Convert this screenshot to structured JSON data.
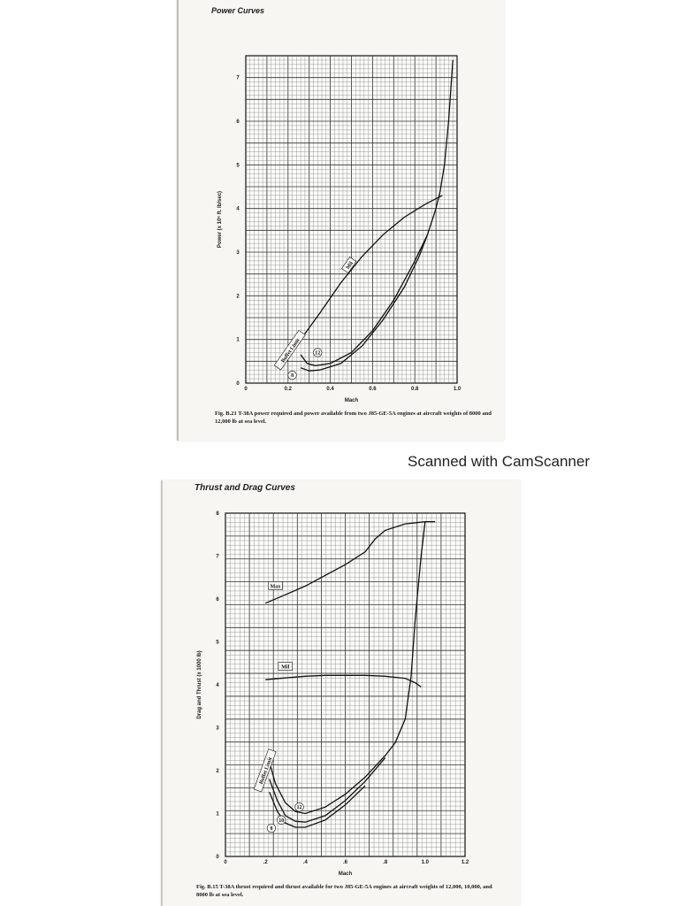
{
  "scanner_banner": "Scanned with CamScanner",
  "chart_data": [
    {
      "type": "line",
      "section_title": "Power Curves",
      "xlabel": "Mach",
      "ylabel": "Power (x 10⁶ ft. lb/sec)",
      "xlim": [
        0,
        1.0
      ],
      "ylim": [
        0,
        7.5
      ],
      "x_ticks": [
        "0",
        "0.2",
        "0.4",
        "0.6",
        "0.8",
        "1.0"
      ],
      "y_ticks": [
        "0",
        "1",
        "2",
        "3",
        "4",
        "5",
        "6",
        "7"
      ],
      "grid": true,
      "series": [
        {
          "name": "Mil",
          "x": [
            0.26,
            0.35,
            0.45,
            0.55,
            0.65,
            0.75,
            0.85,
            0.93
          ],
          "y": [
            1.0,
            1.6,
            2.3,
            2.9,
            3.4,
            3.8,
            4.1,
            4.3
          ]
        },
        {
          "name": "12",
          "x": [
            0.26,
            0.29,
            0.33,
            0.4,
            0.5,
            0.6,
            0.7,
            0.8,
            0.86,
            0.9,
            0.92,
            0.94,
            0.96,
            0.98
          ],
          "y": [
            0.65,
            0.45,
            0.4,
            0.45,
            0.7,
            1.2,
            1.9,
            2.8,
            3.4,
            4.0,
            4.4,
            5.0,
            6.0,
            7.4
          ]
        },
        {
          "name": "8",
          "x": [
            0.26,
            0.3,
            0.35,
            0.45,
            0.55,
            0.65,
            0.75,
            0.82,
            0.86
          ],
          "y": [
            0.35,
            0.28,
            0.3,
            0.45,
            0.85,
            1.45,
            2.2,
            2.9,
            3.4
          ]
        }
      ],
      "annotations": [
        "Buffet Limit",
        "Mil",
        "12",
        "8"
      ],
      "caption": "Fig. B.21   T-38A power required and power available from two J85-GE-5A engines at aircraft weights of 8000 and 12,000 lb at sea level."
    },
    {
      "type": "line",
      "section_title": "Thrust and Drag Curves",
      "xlabel": "Mach",
      "ylabel": "Drag and Thrust (x 1000 lb)",
      "xlim": [
        0,
        1.2
      ],
      "ylim": [
        0,
        8
      ],
      "x_ticks": [
        "0",
        ".2",
        ".4",
        ".6",
        ".8",
        "1.0",
        "1.2"
      ],
      "y_ticks": [
        "0",
        "1",
        "2",
        "3",
        "4",
        "5",
        "6",
        "7",
        "8"
      ],
      "grid": true,
      "series": [
        {
          "name": "Max",
          "x": [
            0.2,
            0.3,
            0.4,
            0.5,
            0.6,
            0.7,
            0.75,
            0.8,
            0.9,
            1.0,
            1.05
          ],
          "y": [
            5.9,
            6.1,
            6.3,
            6.55,
            6.8,
            7.1,
            7.4,
            7.6,
            7.75,
            7.8,
            7.8
          ]
        },
        {
          "name": "Mil",
          "x": [
            0.2,
            0.3,
            0.4,
            0.5,
            0.6,
            0.7,
            0.8,
            0.9,
            0.95,
            0.98
          ],
          "y": [
            4.12,
            4.16,
            4.2,
            4.22,
            4.22,
            4.22,
            4.2,
            4.15,
            4.05,
            3.95
          ]
        },
        {
          "name": "12",
          "x": [
            0.22,
            0.25,
            0.3,
            0.35,
            0.4,
            0.5,
            0.6,
            0.7,
            0.8,
            0.85,
            0.9,
            0.93,
            0.95,
            0.98,
            1.0
          ],
          "y": [
            2.2,
            1.7,
            1.25,
            1.05,
            1.0,
            1.15,
            1.45,
            1.85,
            2.35,
            2.65,
            3.2,
            4.2,
            5.5,
            7.0,
            7.8
          ]
        },
        {
          "name": "10",
          "x": [
            0.22,
            0.26,
            0.3,
            0.35,
            0.4,
            0.5,
            0.6,
            0.7,
            0.8
          ],
          "y": [
            1.8,
            1.3,
            0.95,
            0.82,
            0.8,
            0.95,
            1.3,
            1.75,
            2.3
          ]
        },
        {
          "name": "8",
          "x": [
            0.22,
            0.26,
            0.3,
            0.35,
            0.4,
            0.5,
            0.6,
            0.7
          ],
          "y": [
            1.5,
            1.05,
            0.78,
            0.68,
            0.68,
            0.85,
            1.2,
            1.65
          ]
        }
      ],
      "annotations": [
        "Buffet Limit",
        "Max",
        "Mil",
        "12",
        "10",
        "8"
      ],
      "caption": "Fig. B.15   T-38A thrust required and thrust available for two J85-GE-5A engines at aircraft weights of 12,000, 10,000, and 8000 lb at sea level."
    }
  ]
}
